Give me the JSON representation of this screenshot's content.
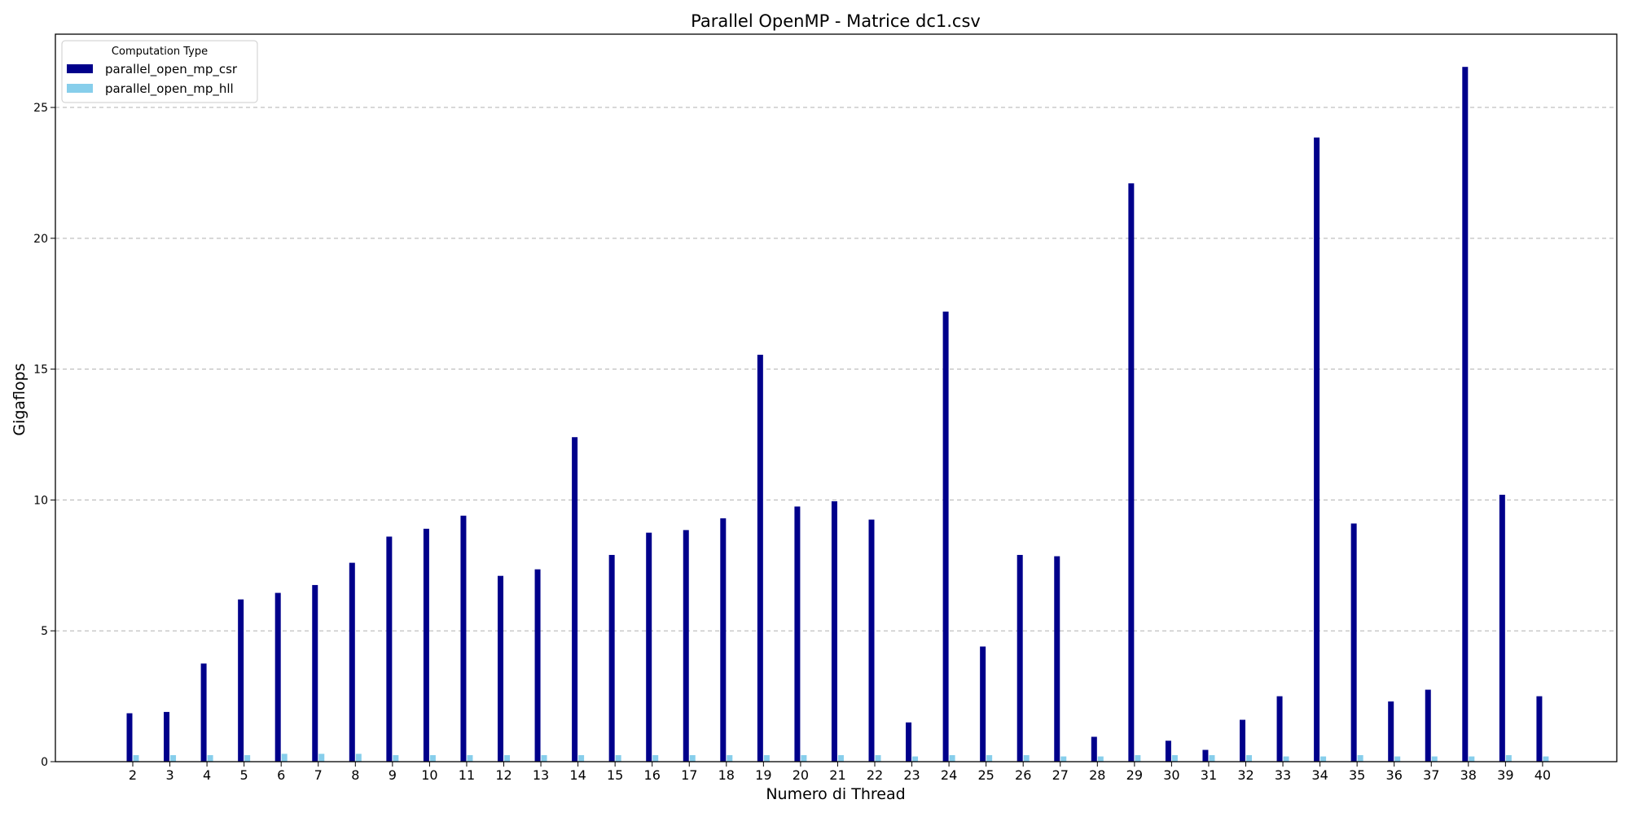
{
  "chart_data": {
    "type": "bar",
    "title": "Parallel OpenMP - Matrice dc1.csv",
    "xlabel": "Numero di Thread",
    "ylabel": "Gigaflops",
    "ylim": [
      0,
      27.8
    ],
    "yticks": [
      0,
      5,
      10,
      15,
      20,
      25
    ],
    "grid": "y-dashed",
    "legend_position": "top-left",
    "legend_title": "Computation Type",
    "categories": [
      "2",
      "3",
      "4",
      "5",
      "6",
      "7",
      "8",
      "9",
      "10",
      "11",
      "12",
      "13",
      "14",
      "15",
      "16",
      "17",
      "18",
      "19",
      "20",
      "21",
      "22",
      "23",
      "24",
      "25",
      "26",
      "27",
      "28",
      "29",
      "30",
      "31",
      "32",
      "33",
      "34",
      "35",
      "36",
      "37",
      "38",
      "39",
      "40"
    ],
    "series": [
      {
        "name": "parallel_open_mp_csr",
        "color": "#00008b",
        "values": [
          1.85,
          1.9,
          3.75,
          6.2,
          6.45,
          6.75,
          7.6,
          8.6,
          8.9,
          9.4,
          7.1,
          7.35,
          12.4,
          7.9,
          8.75,
          8.85,
          9.3,
          15.55,
          9.75,
          9.95,
          9.25,
          1.5,
          17.2,
          4.4,
          7.9,
          7.85,
          0.95,
          22.1,
          0.8,
          0.45,
          1.6,
          2.5,
          23.85,
          9.1,
          2.3,
          2.75,
          26.55,
          10.2,
          2.5
        ]
      },
      {
        "name": "parallel_open_mp_hll",
        "color": "#87ceeb",
        "values": [
          0.25,
          0.25,
          0.25,
          0.25,
          0.3,
          0.3,
          0.3,
          0.25,
          0.25,
          0.25,
          0.25,
          0.25,
          0.25,
          0.25,
          0.25,
          0.25,
          0.25,
          0.25,
          0.25,
          0.25,
          0.25,
          0.2,
          0.25,
          0.25,
          0.25,
          0.2,
          0.2,
          0.25,
          0.25,
          0.25,
          0.25,
          0.2,
          0.2,
          0.25,
          0.2,
          0.2,
          0.2,
          0.25,
          0.2
        ]
      }
    ]
  }
}
